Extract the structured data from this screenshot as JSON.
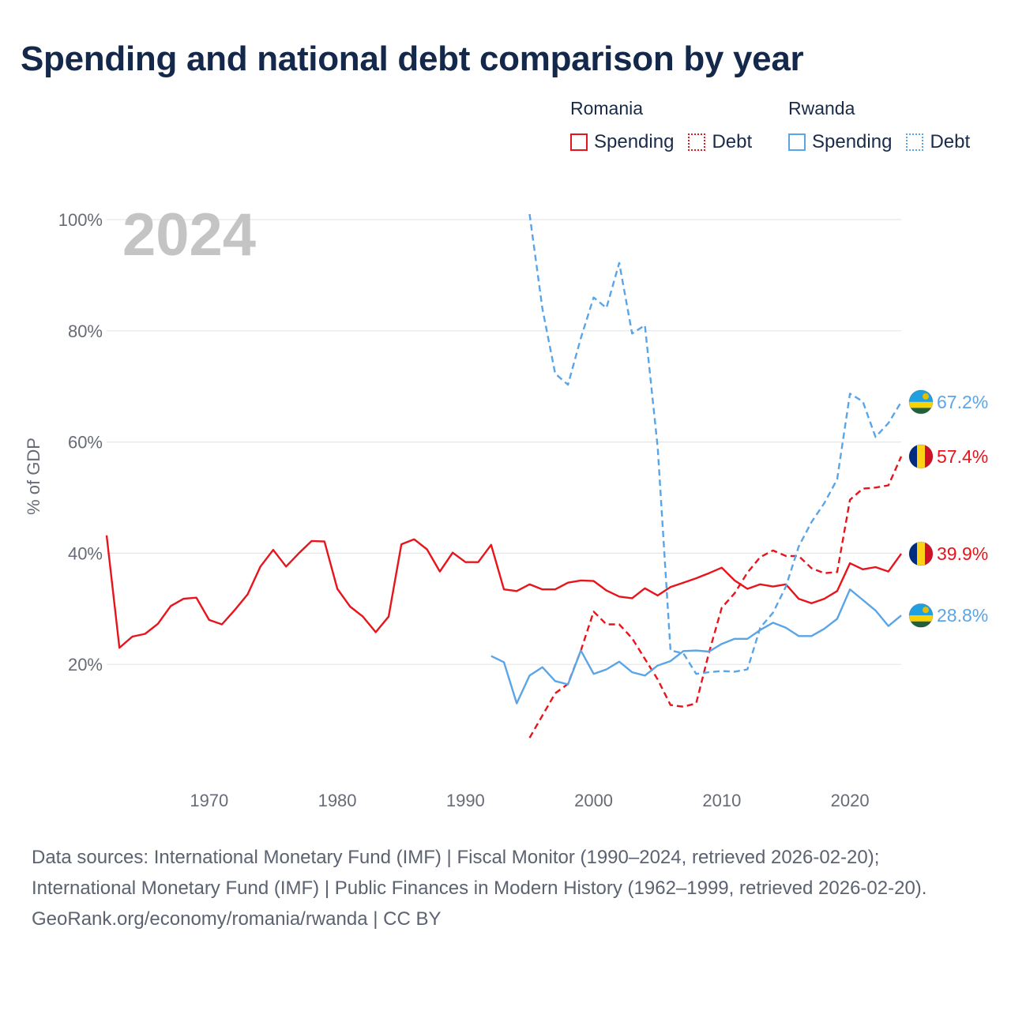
{
  "title": "Spending and national debt comparison by year",
  "legend": {
    "romania": {
      "group": "Romania",
      "spending": "Spending",
      "debt": "Debt"
    },
    "rwanda": {
      "group": "Rwanda",
      "spending": "Spending",
      "debt": "Debt"
    }
  },
  "footer": {
    "sources": "Data sources: International Monetary Fund (IMF) | Fiscal Monitor (1990–2024, retrieved 2026-02-20); International Monetary Fund (IMF) | Public Finances in Modern History (1962–1999, retrieved 2026-02-20).",
    "credit": "GeoRank.org/economy/romania/rwanda | CC BY"
  },
  "colors": {
    "romania": "#e8141c",
    "rwanda": "#5aa5e8",
    "grid": "#e6e6e6",
    "text": "#14284b"
  },
  "chart_data": {
    "type": "line",
    "title": "Spending and national debt comparison by year",
    "year_label": "2024",
    "ylabel": "% of GDP",
    "xlim": [
      1962,
      2024
    ],
    "ylim": [
      0,
      100
    ],
    "x_ticks": [
      1970,
      1980,
      1990,
      2000,
      2010,
      2020
    ],
    "y_ticks": [
      20,
      40,
      60,
      80,
      100
    ],
    "y_tick_labels": [
      "20%",
      "40%",
      "60%",
      "80%",
      "100%"
    ],
    "legend_position": "top-right",
    "series": [
      {
        "name": "Romania Spending",
        "country": "Romania",
        "kind": "spending",
        "style": "solid",
        "color": "#e8141c",
        "end_label": "39.9%",
        "points": [
          [
            1962,
            43.2
          ],
          [
            1963,
            23.0
          ],
          [
            1964,
            25.0
          ],
          [
            1965,
            25.5
          ],
          [
            1966,
            27.3
          ],
          [
            1967,
            30.5
          ],
          [
            1968,
            31.8
          ],
          [
            1969,
            32.0
          ],
          [
            1970,
            28.0
          ],
          [
            1971,
            27.2
          ],
          [
            1972,
            29.8
          ],
          [
            1973,
            32.6
          ],
          [
            1974,
            37.6
          ],
          [
            1975,
            40.6
          ],
          [
            1976,
            37.6
          ],
          [
            1977,
            40.0
          ],
          [
            1978,
            42.2
          ],
          [
            1979,
            42.1
          ],
          [
            1980,
            33.6
          ],
          [
            1981,
            30.4
          ],
          [
            1982,
            28.6
          ],
          [
            1983,
            25.8
          ],
          [
            1984,
            28.6
          ],
          [
            1985,
            41.6
          ],
          [
            1986,
            42.5
          ],
          [
            1987,
            40.7
          ],
          [
            1988,
            36.7
          ],
          [
            1989,
            40.1
          ],
          [
            1990,
            38.4
          ],
          [
            1991,
            38.4
          ],
          [
            1992,
            41.5
          ],
          [
            1993,
            33.5
          ],
          [
            1994,
            33.2
          ],
          [
            1995,
            34.4
          ],
          [
            1996,
            33.5
          ],
          [
            1997,
            33.5
          ],
          [
            1998,
            34.7
          ],
          [
            1999,
            35.1
          ],
          [
            2000,
            35.0
          ],
          [
            2001,
            33.3
          ],
          [
            2002,
            32.2
          ],
          [
            2003,
            31.9
          ],
          [
            2004,
            33.7
          ],
          [
            2005,
            32.4
          ],
          [
            2006,
            33.9
          ],
          [
            2007,
            34.7
          ],
          [
            2008,
            35.5
          ],
          [
            2009,
            36.4
          ],
          [
            2010,
            37.4
          ],
          [
            2011,
            35.1
          ],
          [
            2012,
            33.6
          ],
          [
            2013,
            34.4
          ],
          [
            2014,
            34.0
          ],
          [
            2015,
            34.4
          ],
          [
            2016,
            31.8
          ],
          [
            2017,
            31.0
          ],
          [
            2018,
            31.8
          ],
          [
            2019,
            33.2
          ],
          [
            2020,
            38.2
          ],
          [
            2021,
            37.1
          ],
          [
            2022,
            37.5
          ],
          [
            2023,
            36.7
          ],
          [
            2024,
            39.9
          ]
        ]
      },
      {
        "name": "Romania Debt",
        "country": "Romania",
        "kind": "debt",
        "style": "dashed",
        "color": "#e8141c",
        "end_label": "57.4%",
        "points": [
          [
            1995,
            6.8
          ],
          [
            1996,
            10.8
          ],
          [
            1997,
            14.8
          ],
          [
            1998,
            16.5
          ],
          [
            1999,
            22.5
          ],
          [
            2000,
            29.5
          ],
          [
            2001,
            27.2
          ],
          [
            2002,
            27.2
          ],
          [
            2003,
            24.7
          ],
          [
            2004,
            21.0
          ],
          [
            2005,
            17.3
          ],
          [
            2006,
            12.7
          ],
          [
            2007,
            12.4
          ],
          [
            2008,
            13.0
          ],
          [
            2009,
            22.1
          ],
          [
            2010,
            30.2
          ],
          [
            2011,
            32.8
          ],
          [
            2012,
            36.5
          ],
          [
            2013,
            39.3
          ],
          [
            2014,
            40.5
          ],
          [
            2015,
            39.5
          ],
          [
            2016,
            39.5
          ],
          [
            2017,
            37.3
          ],
          [
            2018,
            36.4
          ],
          [
            2019,
            36.6
          ],
          [
            2020,
            49.6
          ],
          [
            2021,
            51.6
          ],
          [
            2022,
            51.8
          ],
          [
            2023,
            52.2
          ],
          [
            2024,
            57.4
          ]
        ]
      },
      {
        "name": "Rwanda Spending",
        "country": "Rwanda",
        "kind": "spending",
        "style": "solid",
        "color": "#5aa5e8",
        "end_label": "28.8%",
        "points": [
          [
            1992,
            21.5
          ],
          [
            1993,
            20.4
          ],
          [
            1994,
            13.0
          ],
          [
            1995,
            18.0
          ],
          [
            1996,
            19.5
          ],
          [
            1997,
            17.0
          ],
          [
            1998,
            16.4
          ],
          [
            1999,
            22.5
          ],
          [
            2000,
            18.3
          ],
          [
            2001,
            19.1
          ],
          [
            2002,
            20.5
          ],
          [
            2003,
            18.6
          ],
          [
            2004,
            18.0
          ],
          [
            2005,
            19.8
          ],
          [
            2006,
            20.6
          ],
          [
            2007,
            22.4
          ],
          [
            2008,
            22.5
          ],
          [
            2009,
            22.3
          ],
          [
            2010,
            23.7
          ],
          [
            2011,
            24.6
          ],
          [
            2012,
            24.6
          ],
          [
            2013,
            26.2
          ],
          [
            2014,
            27.5
          ],
          [
            2015,
            26.6
          ],
          [
            2016,
            25.1
          ],
          [
            2017,
            25.1
          ],
          [
            2018,
            26.4
          ],
          [
            2019,
            28.2
          ],
          [
            2020,
            33.5
          ],
          [
            2021,
            31.6
          ],
          [
            2022,
            29.7
          ],
          [
            2023,
            26.9
          ],
          [
            2024,
            28.8
          ]
        ]
      },
      {
        "name": "Rwanda Debt",
        "country": "Rwanda",
        "kind": "debt",
        "style": "dashed",
        "color": "#5aa5e8",
        "end_label": "67.2%",
        "points": [
          [
            1995,
            101.0
          ],
          [
            1996,
            84.0
          ],
          [
            1997,
            72.3
          ],
          [
            1998,
            70.3
          ],
          [
            1999,
            78.7
          ],
          [
            2000,
            86.0
          ],
          [
            2001,
            84.1
          ],
          [
            2002,
            92.2
          ],
          [
            2003,
            79.5
          ],
          [
            2004,
            81.0
          ],
          [
            2005,
            59.0
          ],
          [
            2006,
            22.5
          ],
          [
            2007,
            22.0
          ],
          [
            2008,
            18.3
          ],
          [
            2009,
            18.6
          ],
          [
            2010,
            18.8
          ],
          [
            2011,
            18.7
          ],
          [
            2012,
            19.1
          ],
          [
            2013,
            26.6
          ],
          [
            2014,
            29.3
          ],
          [
            2015,
            34.0
          ],
          [
            2016,
            41.2
          ],
          [
            2017,
            45.6
          ],
          [
            2018,
            49.0
          ],
          [
            2019,
            53.3
          ],
          [
            2020,
            68.7
          ],
          [
            2021,
            67.3
          ],
          [
            2022,
            60.9
          ],
          [
            2023,
            63.4
          ],
          [
            2024,
            67.2
          ]
        ]
      }
    ]
  }
}
